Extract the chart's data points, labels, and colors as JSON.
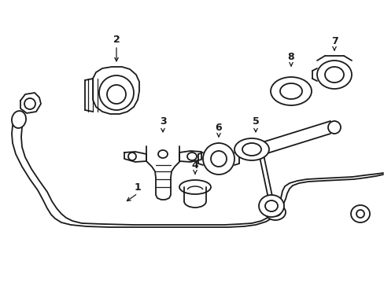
{
  "bg_color": "#ffffff",
  "line_color": "#1a1a1a",
  "lw": 1.3,
  "fig_w": 4.89,
  "fig_h": 3.6,
  "dpi": 100
}
